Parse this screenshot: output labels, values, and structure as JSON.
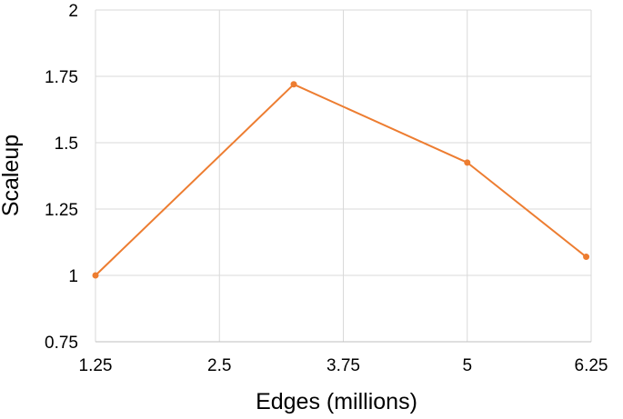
{
  "chart_data": {
    "type": "line",
    "title": "",
    "xlabel": "Edges (millions)",
    "ylabel": "Scaleup",
    "xlim": [
      1.25,
      6.25
    ],
    "ylim": [
      0.75,
      2
    ],
    "x_ticks": [
      1.25,
      2.5,
      3.75,
      5,
      6.25
    ],
    "x_tick_labels": [
      "1.25",
      "2.5",
      "3.75",
      "5",
      "6.25"
    ],
    "y_ticks": [
      0.75,
      1,
      1.25,
      1.5,
      1.75,
      2
    ],
    "y_tick_labels": [
      "0.75",
      "1",
      "1.25",
      "1.5",
      "1.75",
      "2"
    ],
    "grid": true,
    "legend": "none",
    "series": [
      {
        "color": "#ED7D31",
        "points": [
          {
            "x": 1.25,
            "y": 1.0
          },
          {
            "x": 3.25,
            "y": 1.72
          },
          {
            "x": 5.0,
            "y": 1.425
          },
          {
            "x": 6.2,
            "y": 1.07
          }
        ]
      }
    ]
  }
}
